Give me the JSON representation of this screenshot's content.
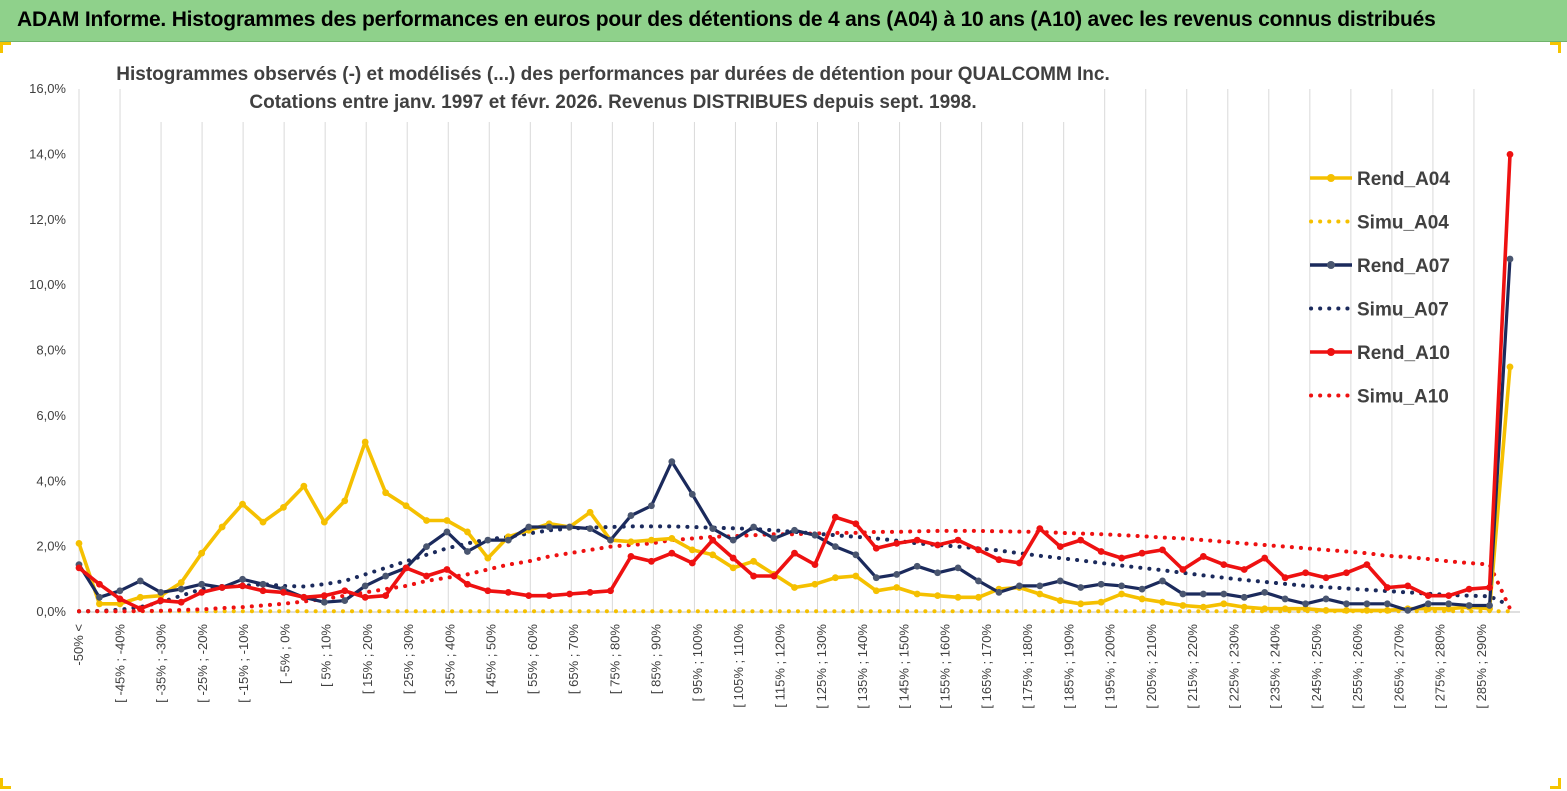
{
  "banner": {
    "title": "ADAM Informe. Histogrammes des performances en euros pour des détentions de 4 ans (A04) à 10 ans (A10) avec les revenus connus distribués"
  },
  "colors": {
    "banner_bg": "#8fd18b",
    "A04": "#f5c000",
    "A07": "#1b2a5c",
    "A10": "#ee1111",
    "grid": "#d9d9d9",
    "text": "#404040"
  },
  "chart_data": {
    "type": "line",
    "title": "Histogrammes observés (-) et modélisés (...) des performances par durées de détention pour QUALCOMM Inc.",
    "subtitle": "Cotations entre janv. 1997 et févr. 2026. Revenus DISTRIBUES depuis sept. 1998.",
    "xlabel": "",
    "ylabel": "",
    "ylim": [
      0,
      16
    ],
    "y_ticks": [
      "0,0%",
      "2,0%",
      "4,0%",
      "6,0%",
      "8,0%",
      "10,0%",
      "12,0%",
      "14,0%",
      "16,0%"
    ],
    "grid": "vertical",
    "legend_position": "right",
    "x_labels": [
      "-50% <",
      "[ -45% ; -40%",
      "[ -35% ; -30%",
      "[ -25% ; -20%",
      "[ -15% ; -10%",
      "[ -5% ; 0%",
      "[ 5% ; 10%",
      "[ 15% ; 20%",
      "[ 25% ; 30%",
      "[ 35% ; 40%",
      "[ 45% ; 50%",
      "[ 55% ; 60%",
      "[ 65% ; 70%",
      "[ 75% ; 80%",
      "[ 85% ; 90%",
      "[ 95% ; 100%",
      "[ 105% ; 110%",
      "[ 115% ; 120%",
      "[ 125% ; 130%",
      "[ 135% ; 140%",
      "[ 145% ; 150%",
      "[ 155% ; 160%",
      "[ 165% ; 170%",
      "[ 175% ; 180%",
      "[ 185% ; 190%",
      "[ 195% ; 200%",
      "[ 205% ; 210%",
      "[ 215% ; 220%",
      "[ 225% ; 230%",
      "[ 235% ; 240%",
      "[ 245% ; 250%",
      "[ 255% ; 260%",
      "[ 265% ; 270%",
      "[ 275% ; 280%",
      "[ 285% ; 290%"
    ],
    "series": [
      {
        "name": "Rend_A04",
        "style": "solid",
        "color": "#f5c000",
        "values": [
          2.1,
          0.25,
          0.25,
          0.45,
          0.5,
          0.9,
          1.8,
          2.6,
          3.3,
          2.75,
          3.2,
          3.85,
          2.75,
          3.4,
          5.2,
          3.65,
          3.25,
          2.8,
          2.8,
          2.45,
          1.65,
          2.3,
          2.5,
          2.7,
          2.6,
          3.05,
          2.2,
          2.15,
          2.2,
          2.25,
          1.9,
          1.75,
          1.35,
          1.55,
          1.15,
          0.75,
          0.85,
          1.05,
          1.1,
          0.65,
          0.75,
          0.55,
          0.5,
          0.45,
          0.45,
          0.7,
          0.75,
          0.55,
          0.35,
          0.25,
          0.3,
          0.55,
          0.4,
          0.3,
          0.2,
          0.15,
          0.25,
          0.15,
          0.1,
          0.1,
          0.1,
          0.05,
          0.05,
          0.05,
          0.05,
          0.1,
          0.1,
          0.1,
          0.15,
          0.1,
          7.5
        ]
      },
      {
        "name": "Simu_A04",
        "style": "dotted",
        "color": "#f5c000",
        "values": [
          0.02,
          0.02,
          0.02,
          0.02,
          0.02,
          0.02,
          0.02,
          0.02,
          0.02,
          0.02,
          0.02,
          0.02,
          0.02,
          0.02,
          0.02,
          0.02,
          0.02,
          0.02,
          0.02,
          0.02,
          0.02,
          0.02,
          0.02,
          0.02,
          0.02,
          0.02,
          0.02,
          0.02,
          0.02,
          0.02,
          0.02,
          0.02,
          0.02,
          0.02,
          0.02,
          0.02,
          0.02,
          0.02,
          0.02,
          0.02,
          0.02,
          0.02,
          0.02,
          0.02,
          0.02,
          0.02,
          0.02,
          0.02,
          0.02,
          0.02,
          0.02,
          0.02,
          0.02,
          0.02,
          0.02,
          0.02,
          0.02,
          0.02,
          0.02,
          0.02,
          0.02,
          0.02,
          0.02,
          0.02,
          0.02,
          0.02,
          0.02,
          0.02,
          0.02,
          0.02,
          0.02
        ]
      },
      {
        "name": "Rend_A07",
        "style": "solid",
        "color": "#1b2a5c",
        "values": [
          1.45,
          0.45,
          0.65,
          0.95,
          0.6,
          0.7,
          0.85,
          0.75,
          1.0,
          0.85,
          0.7,
          0.45,
          0.3,
          0.35,
          0.8,
          1.1,
          1.35,
          2.0,
          2.45,
          1.85,
          2.2,
          2.2,
          2.6,
          2.6,
          2.6,
          2.55,
          2.2,
          2.95,
          3.25,
          4.6,
          3.6,
          2.55,
          2.2,
          2.6,
          2.25,
          2.5,
          2.35,
          2.0,
          1.75,
          1.05,
          1.15,
          1.4,
          1.2,
          1.35,
          0.95,
          0.6,
          0.8,
          0.8,
          0.95,
          0.75,
          0.85,
          0.8,
          0.7,
          0.95,
          0.55,
          0.55,
          0.55,
          0.45,
          0.6,
          0.4,
          0.25,
          0.4,
          0.25,
          0.25,
          0.25,
          0.05,
          0.25,
          0.25,
          0.2,
          0.2,
          10.8
        ]
      },
      {
        "name": "Simu_A07",
        "style": "dotted",
        "color": "#1b2a5c",
        "values": [
          0.02,
          0.03,
          0.07,
          0.15,
          0.3,
          0.5,
          0.7,
          0.8,
          0.8,
          0.85,
          0.8,
          0.78,
          0.85,
          0.95,
          1.15,
          1.35,
          1.55,
          1.75,
          1.95,
          2.1,
          2.22,
          2.3,
          2.4,
          2.5,
          2.55,
          2.58,
          2.6,
          2.62,
          2.62,
          2.62,
          2.6,
          2.58,
          2.56,
          2.54,
          2.5,
          2.45,
          2.4,
          2.35,
          2.3,
          2.25,
          2.18,
          2.1,
          2.05,
          2.0,
          1.95,
          1.88,
          1.8,
          1.72,
          1.65,
          1.58,
          1.5,
          1.42,
          1.35,
          1.28,
          1.2,
          1.12,
          1.05,
          0.98,
          0.92,
          0.86,
          0.8,
          0.76,
          0.72,
          0.68,
          0.64,
          0.6,
          0.56,
          0.52,
          0.5,
          0.48,
          0.2
        ]
      },
      {
        "name": "Rend_A10",
        "style": "solid",
        "color": "#ee1111",
        "values": [
          1.35,
          0.85,
          0.4,
          0.1,
          0.35,
          0.3,
          0.6,
          0.75,
          0.8,
          0.65,
          0.6,
          0.45,
          0.5,
          0.65,
          0.45,
          0.5,
          1.35,
          1.1,
          1.3,
          0.85,
          0.65,
          0.6,
          0.5,
          0.5,
          0.55,
          0.6,
          0.65,
          1.7,
          1.55,
          1.8,
          1.5,
          2.2,
          1.65,
          1.1,
          1.1,
          1.8,
          1.45,
          2.9,
          2.7,
          1.95,
          2.1,
          2.2,
          2.05,
          2.2,
          1.9,
          1.6,
          1.5,
          2.55,
          2.0,
          2.2,
          1.85,
          1.65,
          1.8,
          1.9,
          1.3,
          1.7,
          1.45,
          1.3,
          1.65,
          1.05,
          1.2,
          1.05,
          1.2,
          1.45,
          0.75,
          0.8,
          0.5,
          0.5,
          0.7,
          0.75,
          14.0
        ]
      },
      {
        "name": "Simu_A10",
        "style": "dotted",
        "color": "#ee1111",
        "values": [
          0.02,
          0.02,
          0.02,
          0.03,
          0.04,
          0.06,
          0.08,
          0.12,
          0.15,
          0.2,
          0.25,
          0.32,
          0.4,
          0.5,
          0.6,
          0.7,
          0.8,
          0.95,
          1.05,
          1.15,
          1.3,
          1.45,
          1.55,
          1.7,
          1.8,
          1.9,
          2.0,
          2.05,
          2.1,
          2.2,
          2.25,
          2.3,
          2.32,
          2.35,
          2.38,
          2.38,
          2.4,
          2.42,
          2.42,
          2.45,
          2.45,
          2.47,
          2.48,
          2.48,
          2.48,
          2.47,
          2.46,
          2.45,
          2.42,
          2.4,
          2.38,
          2.35,
          2.32,
          2.28,
          2.25,
          2.2,
          2.15,
          2.1,
          2.05,
          2.0,
          1.95,
          1.9,
          1.85,
          1.8,
          1.72,
          1.68,
          1.62,
          1.55,
          1.5,
          1.45,
          0.1
        ]
      }
    ]
  }
}
